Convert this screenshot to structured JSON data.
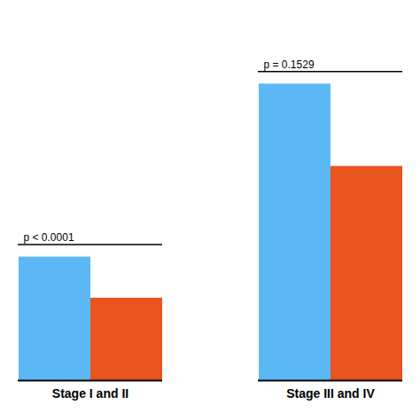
{
  "chart_data": {
    "type": "bar",
    "categories": [
      "Stage I and II",
      "Stage III and IV"
    ],
    "series": [
      {
        "color": "#5BB8F5",
        "values": [
          0.3,
          0.72
        ]
      },
      {
        "color": "#E8531E",
        "values": [
          0.2,
          0.52
        ]
      }
    ],
    "ylim": [
      0,
      0.88
    ],
    "tick_labels": "x",
    "annotations": [
      "p < 0.0001",
      "p = 0.1529"
    ]
  }
}
